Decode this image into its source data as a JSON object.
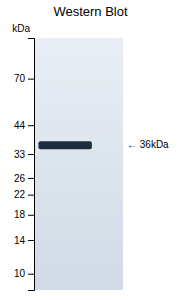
{
  "chart_data": {
    "type": "gel",
    "title": "Western Blot",
    "ylabel": "kDa",
    "values": [
      36
    ],
    "color": "#1c2d40",
    "log": "y",
    "ylim": [
      8.5,
      105
    ],
    "yticks": [
      70,
      44,
      33,
      26,
      22,
      18,
      14,
      10
    ],
    "grid": false,
    "tick_labels": "y",
    "annotations": [
      {
        "text": "← 36kDa",
        "y": 36
      }
    ]
  }
}
